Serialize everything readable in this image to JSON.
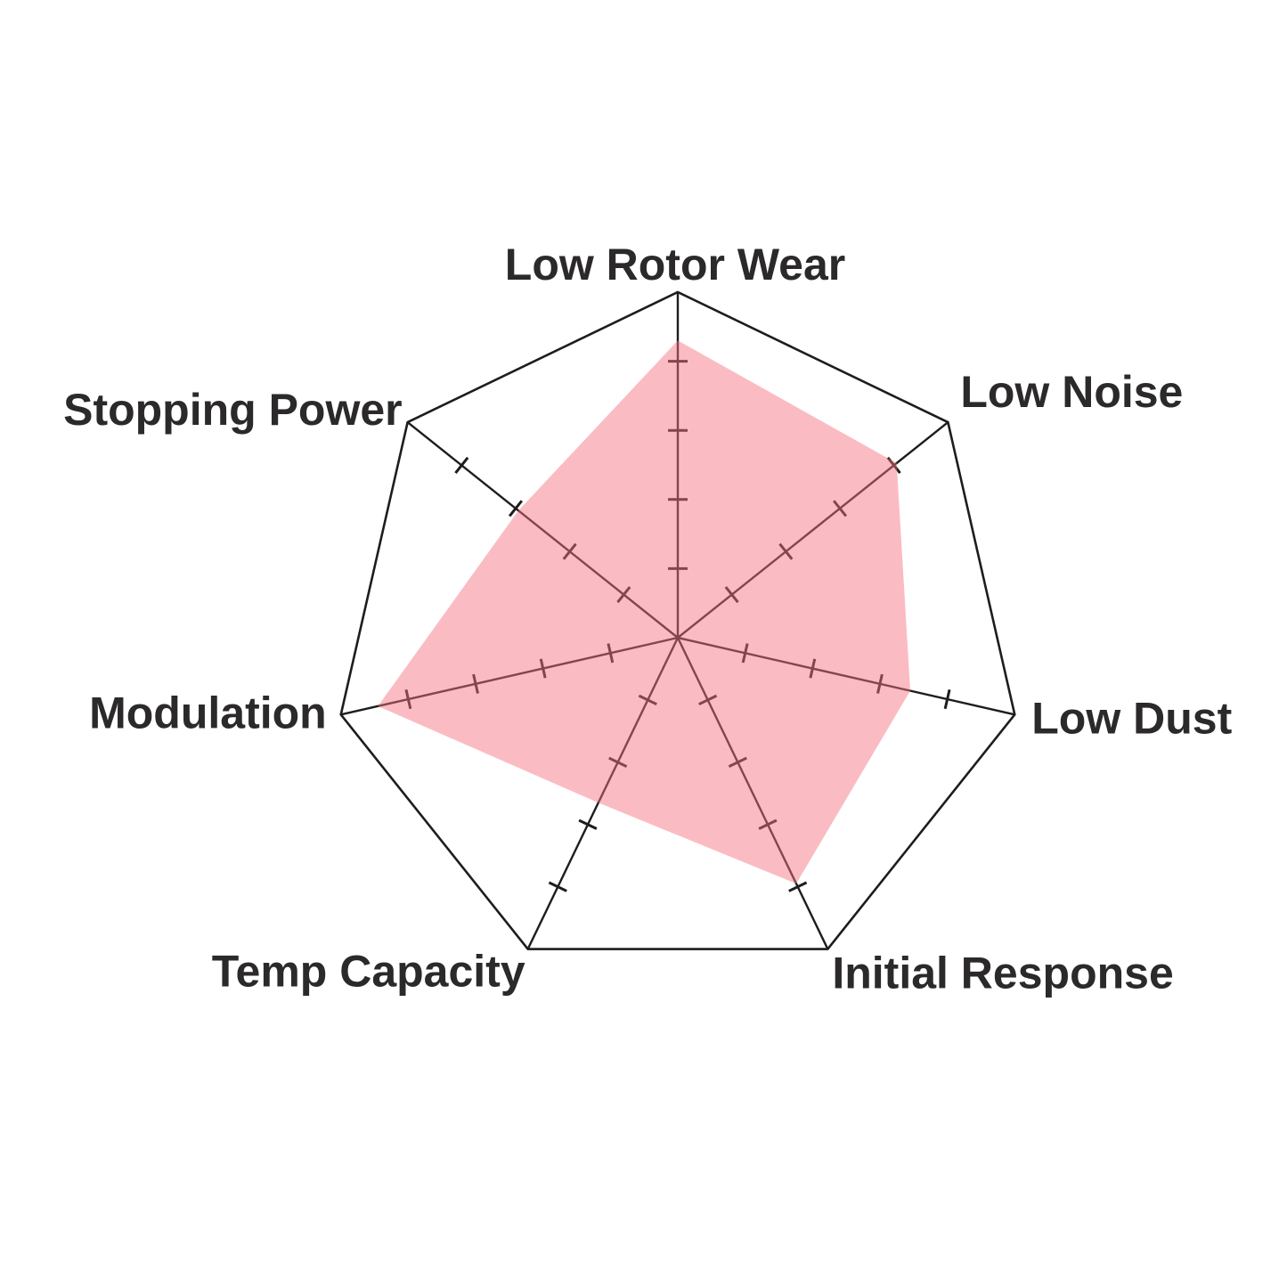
{
  "page": {
    "background": "#ffffff",
    "title": ""
  },
  "chart_data": {
    "type": "radar",
    "title": "",
    "subtitle": "",
    "legend": "none",
    "categories": [
      "Low Rotor Wear",
      "Low Noise",
      "Low Dust",
      "Initial Response",
      "Temp Capacity",
      "Modulation",
      "Stopping Power"
    ],
    "values": [
      4.3,
      4.05,
      3.45,
      3.95,
      2.65,
      4.45,
      2.95
    ],
    "scale": {
      "min": 0,
      "max": 5,
      "tick_interval": 1,
      "ticks_marked_per_axis": [
        1,
        2,
        3,
        4
      ],
      "tick_labels_shown": false
    },
    "layout_hints": {
      "start_axis": "top",
      "direction": "clockwise",
      "grid": "single outer heptagon ring with radial spokes and cross ticks",
      "fill_style": "semi-transparent red over black spokes (spokes appear maroon inside fill)"
    },
    "colors": {
      "fill": "#f4737f",
      "fill_opacity": 0.48,
      "fill_over_white_appearance": "#f8b6ba",
      "axis": "#1d1d1d",
      "label": "#2b292a",
      "background": "#ffffff"
    }
  }
}
